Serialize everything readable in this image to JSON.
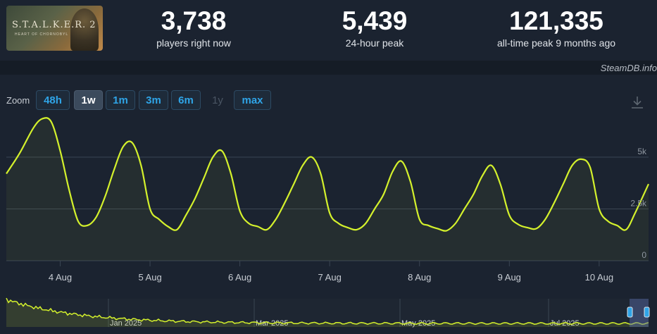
{
  "header": {
    "thumbnail": {
      "logo_text": "S.T.A.L.K.E.R. 2",
      "sub_text": "HEART OF CHORNOBYL"
    },
    "stats": [
      {
        "value": "3,738",
        "label": "players right now"
      },
      {
        "value": "5,439",
        "label": "24-hour peak"
      },
      {
        "value": "121,335",
        "label": "all-time peak 9 months ago"
      }
    ],
    "brand": "SteamDB.info"
  },
  "zoom": {
    "label": "Zoom",
    "buttons": [
      {
        "label": "48h",
        "state": "normal"
      },
      {
        "label": "1w",
        "state": "active"
      },
      {
        "label": "1m",
        "state": "normal"
      },
      {
        "label": "3m",
        "state": "normal"
      },
      {
        "label": "6m",
        "state": "normal"
      },
      {
        "label": "1y",
        "state": "disabled"
      },
      {
        "label": "max",
        "state": "normal"
      }
    ],
    "download_icon": "download-icon"
  },
  "colors": {
    "line": "#d4f12c",
    "accent": "#2fa4e7",
    "background": "#1b2330"
  },
  "chart_data": {
    "type": "line",
    "x_tick_labels": [
      "4 Aug",
      "5 Aug",
      "6 Aug",
      "7 Aug",
      "8 Aug",
      "9 Aug",
      "10 Aug"
    ],
    "y_tick_labels": [
      "0",
      "2.5k",
      "5k"
    ],
    "ylim": [
      0,
      6800
    ],
    "xlim": [
      -0.6,
      6.55
    ],
    "grid": true,
    "series": [
      {
        "x": [
          -0.6,
          -0.45,
          -0.3,
          -0.2,
          -0.1,
          0,
          0.1,
          0.2,
          0.3,
          0.4,
          0.5,
          0.6,
          0.7,
          0.8,
          0.9,
          1,
          1.1,
          1.2,
          1.3,
          1.4,
          1.5,
          1.6,
          1.7,
          1.8,
          1.9,
          2,
          2.1,
          2.2,
          2.3,
          2.4,
          2.5,
          2.6,
          2.7,
          2.8,
          2.9,
          3,
          3.1,
          3.2,
          3.3,
          3.4,
          3.5,
          3.6,
          3.7,
          3.8,
          3.9,
          4,
          4.1,
          4.2,
          4.3,
          4.4,
          4.5,
          4.6,
          4.7,
          4.8,
          4.9,
          5,
          5.1,
          5.2,
          5.3,
          5.4,
          5.5,
          5.6,
          5.7,
          5.8,
          5.9,
          6,
          6.1,
          6.2,
          6.3,
          6.4,
          6.55
        ],
        "y": [
          4200,
          5200,
          6400,
          6850,
          6700,
          5300,
          3400,
          1900,
          1700,
          2100,
          3100,
          4400,
          5500,
          5700,
          4600,
          2500,
          2000,
          1650,
          1500,
          2200,
          3000,
          4000,
          5000,
          5300,
          4200,
          2400,
          1800,
          1650,
          1500,
          2000,
          2800,
          3700,
          4600,
          5000,
          4200,
          2300,
          1800,
          1600,
          1500,
          1800,
          2500,
          3200,
          4300,
          4800,
          3800,
          2000,
          1700,
          1550,
          1450,
          1800,
          2500,
          3200,
          4100,
          4600,
          3700,
          2200,
          1750,
          1600,
          1550,
          2000,
          2800,
          3700,
          4600,
          4900,
          4500,
          2500,
          1900,
          1700,
          1500,
          2300,
          3700
        ]
      }
    ],
    "overview": {
      "tick_labels": [
        "Jan 2025",
        "Mar 2025",
        "May 2025",
        "Jul 2025"
      ]
    }
  }
}
